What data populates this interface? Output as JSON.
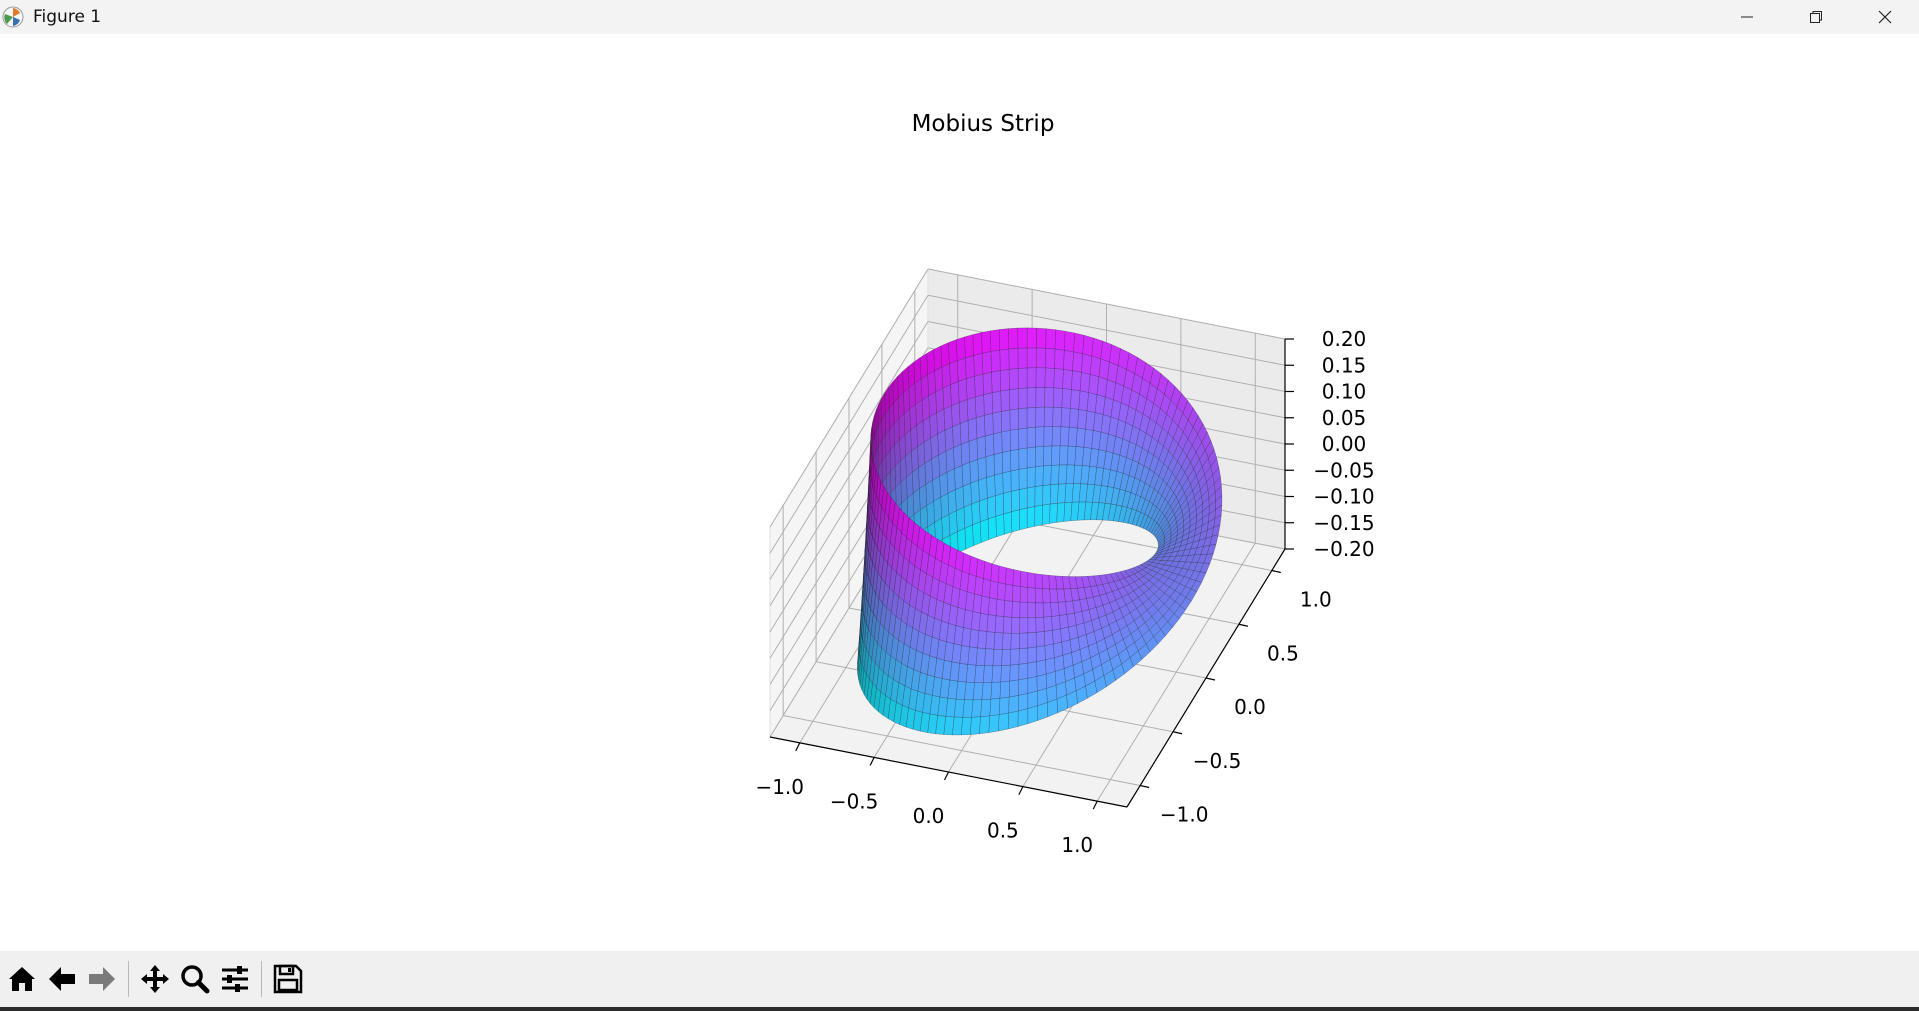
{
  "window": {
    "title": "Figure 1",
    "icons": {
      "app": "matplotlib-app-icon",
      "minimize": "minimize-icon",
      "restore": "restore-icon",
      "close": "close-icon"
    }
  },
  "figure": {
    "title": "Mobius Strip",
    "colormap": [
      "#00ffff",
      "#ff00ff"
    ],
    "pane_color": "#f2f2f2",
    "grid_color": "#b0b0b0"
  },
  "chart_data": {
    "type": "surface",
    "title": "Mobius Strip",
    "xlabel": "",
    "ylabel": "",
    "zlabel": "",
    "x_ticks": [
      "−1.0",
      "−0.5",
      "0.0",
      "0.5",
      "1.0"
    ],
    "y_ticks": [
      "−1.0",
      "−0.5",
      "0.0",
      "0.5",
      "1.0"
    ],
    "z_ticks": [
      "−0.20",
      "−0.15",
      "−0.10",
      "−0.05",
      "0.00",
      "0.05",
      "0.10",
      "0.15",
      "0.20"
    ],
    "xlim": [
      -1.2,
      1.2
    ],
    "ylim": [
      -1.2,
      1.2
    ],
    "zlim": [
      -0.2,
      0.2
    ],
    "grid": true,
    "surface": {
      "u_range": [
        0,
        6.283
      ],
      "v_range": [
        -0.2,
        0.2
      ]
    }
  },
  "toolbar": {
    "buttons": [
      {
        "name": "home-button",
        "icon": "home-icon"
      },
      {
        "name": "back-button",
        "icon": "arrow-left-icon"
      },
      {
        "name": "forward-button",
        "icon": "arrow-right-icon"
      },
      {
        "name": "pan-button",
        "icon": "move-icon"
      },
      {
        "name": "zoom-button",
        "icon": "magnifier-icon"
      },
      {
        "name": "configure-button",
        "icon": "sliders-icon"
      },
      {
        "name": "save-button",
        "icon": "floppy-disk-icon"
      }
    ]
  }
}
